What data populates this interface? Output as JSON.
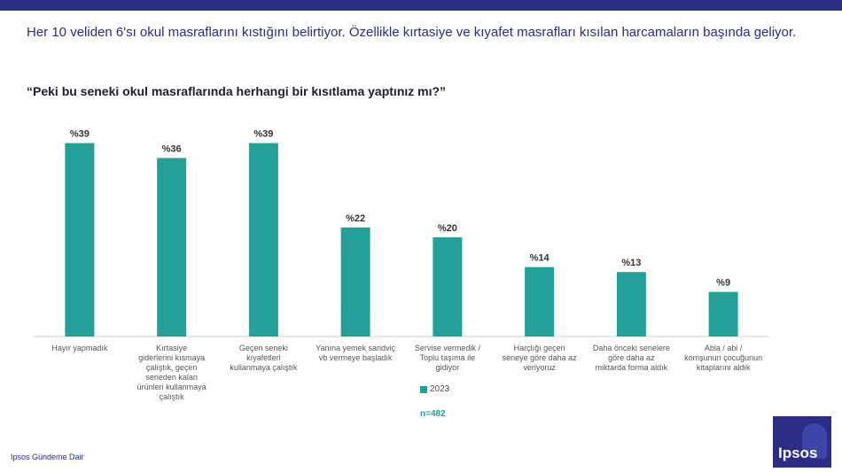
{
  "headline": "Her 10 veliden 6'sı okul masraflarını kıstığını belirtiyor. Özellikle kırtasiye ve kıyafet masrafları kısılan harcamaların başında geliyor.",
  "question": "“Peki bu seneki okul masraflarında herhangi bir kısıtlama yaptınız mı?”",
  "footer": "Ipsos Gündeme Dair",
  "sample_size": "n=482",
  "logo_text": "Ipsos",
  "colors": {
    "bar": "#24a09a",
    "brand": "#2b2c84"
  },
  "chart_data": {
    "type": "bar",
    "categories": [
      "Hayır yapmadık",
      "Kırtasiye giderlerini kısmaya çalıştık, geçen seneden kalan ürünleri kullanmaya çalıştık",
      "Geçen seneki kıyafetleri kullanmaya çalıştık",
      "Yanına yemek sandviç vb vermeye başladık",
      "Servise vermedik / Toplu taşıma ile gidiyor",
      "Harçlığı geçen seneye göre daha az veriyoruz",
      "Daha önceki senelere göre daha az miktarda forma aldık",
      "Abla / abi / komşunun çocuğunun kitaplarını aldık"
    ],
    "series": [
      {
        "name": "2023",
        "values": [
          39,
          36,
          39,
          22,
          20,
          14,
          13,
          9
        ]
      }
    ],
    "data_labels": [
      "%39",
      "%36",
      "%39",
      "%22",
      "%20",
      "%14",
      "%13",
      "%9"
    ],
    "ylim": [
      0,
      45
    ],
    "grid": false,
    "legend": "bottom-center"
  }
}
